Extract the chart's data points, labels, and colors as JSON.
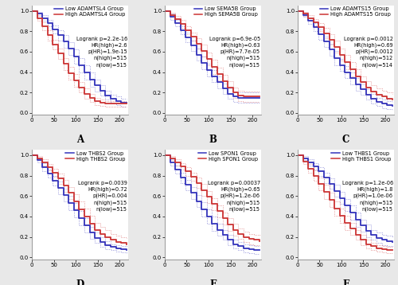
{
  "panels": [
    {
      "label": "A",
      "gene": "ADAMTSL4",
      "low_label": "Low ADAMTSL4 Group",
      "high_label": "High ADAMTSL4 Group",
      "logrank": "p=2.2e-16",
      "HR": "HR(high)=2.6",
      "pHR": "p(HR)=1.9e-15",
      "nhigh": "n(high)=515",
      "nlow": "n(low)=515",
      "low_color": "#3333bb",
      "high_color": "#cc3333",
      "low_surv": [
        1.0,
        0.97,
        0.93,
        0.88,
        0.82,
        0.76,
        0.7,
        0.63,
        0.55,
        0.47,
        0.4,
        0.33,
        0.27,
        0.22,
        0.17,
        0.14,
        0.12,
        0.1,
        0.1
      ],
      "high_surv": [
        1.0,
        0.93,
        0.85,
        0.76,
        0.67,
        0.58,
        0.48,
        0.39,
        0.32,
        0.25,
        0.19,
        0.15,
        0.12,
        0.1,
        0.09,
        0.09,
        0.09,
        0.09,
        0.09
      ],
      "low_upper": [
        1.0,
        0.99,
        0.96,
        0.91,
        0.86,
        0.81,
        0.76,
        0.69,
        0.62,
        0.54,
        0.47,
        0.4,
        0.33,
        0.27,
        0.22,
        0.18,
        0.16,
        0.14,
        0.14
      ],
      "low_lower": [
        1.0,
        0.95,
        0.9,
        0.85,
        0.78,
        0.71,
        0.64,
        0.57,
        0.48,
        0.4,
        0.33,
        0.26,
        0.21,
        0.17,
        0.13,
        0.1,
        0.08,
        0.06,
        0.06
      ],
      "high_upper": [
        1.0,
        0.96,
        0.89,
        0.81,
        0.72,
        0.63,
        0.54,
        0.45,
        0.38,
        0.3,
        0.24,
        0.19,
        0.15,
        0.13,
        0.12,
        0.12,
        0.12,
        0.12,
        0.12
      ],
      "high_lower": [
        1.0,
        0.9,
        0.81,
        0.71,
        0.62,
        0.53,
        0.42,
        0.33,
        0.26,
        0.2,
        0.14,
        0.11,
        0.08,
        0.07,
        0.06,
        0.06,
        0.06,
        0.06,
        0.06
      ],
      "time": [
        0,
        12,
        24,
        36,
        48,
        60,
        72,
        84,
        96,
        108,
        120,
        132,
        144,
        156,
        168,
        180,
        192,
        204,
        216
      ]
    },
    {
      "label": "B",
      "gene": "SEMA5B",
      "low_label": "Low SEMA5B Group",
      "high_label": "High SEMA5B Group",
      "logrank": "p=6.9e-05",
      "HR": "HR(high)=0.63",
      "pHR": "p(HR)=7.7e-05",
      "nhigh": "n(high)=515",
      "nlow": "n(low)=515",
      "low_color": "#3333bb",
      "high_color": "#cc3333",
      "low_surv": [
        1.0,
        0.94,
        0.88,
        0.81,
        0.74,
        0.66,
        0.57,
        0.49,
        0.42,
        0.36,
        0.3,
        0.24,
        0.19,
        0.16,
        0.15,
        0.15,
        0.15,
        0.15,
        0.15
      ],
      "high_surv": [
        1.0,
        0.96,
        0.92,
        0.87,
        0.81,
        0.75,
        0.68,
        0.61,
        0.53,
        0.45,
        0.38,
        0.31,
        0.25,
        0.2,
        0.17,
        0.16,
        0.16,
        0.16,
        0.16
      ],
      "low_upper": [
        1.0,
        0.97,
        0.91,
        0.85,
        0.79,
        0.71,
        0.63,
        0.55,
        0.48,
        0.42,
        0.36,
        0.29,
        0.24,
        0.21,
        0.2,
        0.2,
        0.2,
        0.2,
        0.2
      ],
      "low_lower": [
        1.0,
        0.91,
        0.85,
        0.77,
        0.69,
        0.61,
        0.51,
        0.43,
        0.36,
        0.3,
        0.24,
        0.19,
        0.14,
        0.11,
        0.1,
        0.1,
        0.1,
        0.1,
        0.1
      ],
      "high_upper": [
        1.0,
        0.98,
        0.95,
        0.91,
        0.85,
        0.79,
        0.73,
        0.67,
        0.59,
        0.52,
        0.44,
        0.37,
        0.31,
        0.25,
        0.22,
        0.21,
        0.21,
        0.21,
        0.21
      ],
      "high_lower": [
        1.0,
        0.94,
        0.89,
        0.83,
        0.77,
        0.71,
        0.63,
        0.55,
        0.47,
        0.38,
        0.32,
        0.25,
        0.19,
        0.15,
        0.12,
        0.11,
        0.11,
        0.11,
        0.11
      ],
      "time": [
        0,
        12,
        24,
        36,
        48,
        60,
        72,
        84,
        96,
        108,
        120,
        132,
        144,
        156,
        168,
        180,
        192,
        204,
        216
      ]
    },
    {
      "label": "C",
      "gene": "ADAMTS15",
      "low_label": "Low ADAMTS15 Group",
      "high_label": "High ADAMTS15 Group",
      "logrank": "p=0.0012",
      "HR": "HR(high)=0.69",
      "pHR": "p(HR)=0.0012",
      "nhigh": "n(high)=512",
      "nlow": "n(low)=514",
      "low_color": "#3333bb",
      "high_color": "#cc3333",
      "low_surv": [
        1.0,
        0.96,
        0.9,
        0.84,
        0.77,
        0.7,
        0.62,
        0.54,
        0.47,
        0.4,
        0.34,
        0.28,
        0.23,
        0.18,
        0.14,
        0.11,
        0.09,
        0.08,
        0.07
      ],
      "high_surv": [
        1.0,
        0.97,
        0.93,
        0.89,
        0.84,
        0.78,
        0.72,
        0.65,
        0.57,
        0.5,
        0.43,
        0.36,
        0.3,
        0.25,
        0.21,
        0.18,
        0.16,
        0.14,
        0.13
      ],
      "low_upper": [
        1.0,
        0.98,
        0.93,
        0.88,
        0.82,
        0.75,
        0.68,
        0.61,
        0.53,
        0.46,
        0.4,
        0.34,
        0.28,
        0.23,
        0.19,
        0.15,
        0.13,
        0.12,
        0.11
      ],
      "low_lower": [
        1.0,
        0.94,
        0.87,
        0.8,
        0.72,
        0.65,
        0.56,
        0.47,
        0.41,
        0.34,
        0.28,
        0.22,
        0.18,
        0.13,
        0.09,
        0.07,
        0.05,
        0.04,
        0.03
      ],
      "high_upper": [
        1.0,
        0.99,
        0.96,
        0.92,
        0.88,
        0.83,
        0.77,
        0.71,
        0.63,
        0.57,
        0.5,
        0.43,
        0.36,
        0.31,
        0.27,
        0.24,
        0.22,
        0.2,
        0.19
      ],
      "high_lower": [
        1.0,
        0.95,
        0.9,
        0.86,
        0.8,
        0.73,
        0.67,
        0.59,
        0.51,
        0.43,
        0.36,
        0.29,
        0.24,
        0.19,
        0.15,
        0.12,
        0.1,
        0.08,
        0.07
      ],
      "time": [
        0,
        12,
        24,
        36,
        48,
        60,
        72,
        84,
        96,
        108,
        120,
        132,
        144,
        156,
        168,
        180,
        192,
        204,
        216
      ]
    },
    {
      "label": "D",
      "gene": "THBS2",
      "low_label": "Low THBS2 Group",
      "high_label": "High THBS2 Group",
      "logrank": "p=0.0039",
      "HR": "HR(high)=0.72",
      "pHR": "p(HR)=0.004",
      "nhigh": "n(high)=515",
      "nlow": "n(low)=515",
      "low_color": "#3333bb",
      "high_color": "#cc3333",
      "low_surv": [
        1.0,
        0.95,
        0.88,
        0.82,
        0.75,
        0.68,
        0.61,
        0.53,
        0.46,
        0.38,
        0.31,
        0.24,
        0.19,
        0.15,
        0.12,
        0.1,
        0.09,
        0.08,
        0.07
      ],
      "high_surv": [
        1.0,
        0.97,
        0.93,
        0.88,
        0.83,
        0.77,
        0.7,
        0.63,
        0.55,
        0.47,
        0.4,
        0.33,
        0.27,
        0.23,
        0.2,
        0.17,
        0.15,
        0.14,
        0.13
      ],
      "low_upper": [
        1.0,
        0.97,
        0.92,
        0.86,
        0.8,
        0.74,
        0.67,
        0.6,
        0.53,
        0.45,
        0.38,
        0.3,
        0.24,
        0.2,
        0.16,
        0.13,
        0.12,
        0.11,
        0.1
      ],
      "low_lower": [
        1.0,
        0.93,
        0.84,
        0.78,
        0.7,
        0.62,
        0.55,
        0.46,
        0.39,
        0.31,
        0.24,
        0.18,
        0.14,
        0.1,
        0.08,
        0.07,
        0.06,
        0.05,
        0.04
      ],
      "high_upper": [
        1.0,
        0.99,
        0.96,
        0.91,
        0.87,
        0.82,
        0.76,
        0.69,
        0.62,
        0.55,
        0.48,
        0.41,
        0.34,
        0.3,
        0.27,
        0.23,
        0.21,
        0.2,
        0.19
      ],
      "high_lower": [
        1.0,
        0.95,
        0.9,
        0.85,
        0.79,
        0.72,
        0.64,
        0.57,
        0.48,
        0.39,
        0.32,
        0.25,
        0.2,
        0.16,
        0.13,
        0.11,
        0.09,
        0.08,
        0.07
      ],
      "time": [
        0,
        12,
        24,
        36,
        48,
        60,
        72,
        84,
        96,
        108,
        120,
        132,
        144,
        156,
        168,
        180,
        192,
        204,
        216
      ]
    },
    {
      "label": "E",
      "gene": "SPON1",
      "low_label": "Low SPON1 Group",
      "high_label": "High SPON1 Group",
      "logrank": "p=0.00037",
      "HR": "HR(high)=0.65",
      "pHR": "p(HR)=1.2e-06",
      "nhigh": "n(high)=515",
      "nlow": "n(low)=515",
      "low_color": "#3333bb",
      "high_color": "#cc3333",
      "low_surv": [
        1.0,
        0.93,
        0.86,
        0.78,
        0.71,
        0.63,
        0.55,
        0.47,
        0.4,
        0.33,
        0.27,
        0.22,
        0.17,
        0.13,
        0.11,
        0.09,
        0.08,
        0.07,
        0.07
      ],
      "high_surv": [
        1.0,
        0.97,
        0.93,
        0.89,
        0.84,
        0.79,
        0.73,
        0.66,
        0.59,
        0.52,
        0.45,
        0.38,
        0.32,
        0.27,
        0.23,
        0.2,
        0.18,
        0.17,
        0.16
      ],
      "low_upper": [
        1.0,
        0.96,
        0.9,
        0.83,
        0.76,
        0.69,
        0.61,
        0.54,
        0.47,
        0.4,
        0.33,
        0.27,
        0.22,
        0.17,
        0.15,
        0.13,
        0.12,
        0.11,
        0.11
      ],
      "low_lower": [
        1.0,
        0.9,
        0.82,
        0.73,
        0.66,
        0.57,
        0.49,
        0.4,
        0.33,
        0.26,
        0.21,
        0.17,
        0.12,
        0.09,
        0.07,
        0.05,
        0.04,
        0.03,
        0.03
      ],
      "high_upper": [
        1.0,
        0.99,
        0.96,
        0.92,
        0.88,
        0.83,
        0.78,
        0.72,
        0.65,
        0.58,
        0.51,
        0.44,
        0.38,
        0.33,
        0.28,
        0.25,
        0.23,
        0.22,
        0.21
      ],
      "high_lower": [
        1.0,
        0.95,
        0.9,
        0.86,
        0.8,
        0.75,
        0.68,
        0.6,
        0.53,
        0.46,
        0.39,
        0.32,
        0.26,
        0.21,
        0.18,
        0.15,
        0.13,
        0.12,
        0.11
      ],
      "time": [
        0,
        12,
        24,
        36,
        48,
        60,
        72,
        84,
        96,
        108,
        120,
        132,
        144,
        156,
        168,
        180,
        192,
        204,
        216
      ]
    },
    {
      "label": "F",
      "gene": "THBS1",
      "low_label": "Low THBS1 Group",
      "high_label": "High THBS1 Group",
      "logrank": "p=1.2e-06",
      "HR": "HR(high)=1.8",
      "pHR": "p(HR)=1.0e-06",
      "nhigh": "n(high)=515",
      "nlow": "n(low)=515",
      "low_color": "#3333bb",
      "high_color": "#cc3333",
      "low_surv": [
        1.0,
        0.97,
        0.93,
        0.89,
        0.84,
        0.78,
        0.72,
        0.65,
        0.58,
        0.51,
        0.44,
        0.37,
        0.31,
        0.26,
        0.22,
        0.19,
        0.17,
        0.16,
        0.15
      ],
      "high_surv": [
        1.0,
        0.94,
        0.87,
        0.8,
        0.72,
        0.64,
        0.56,
        0.48,
        0.41,
        0.34,
        0.28,
        0.22,
        0.17,
        0.13,
        0.11,
        0.09,
        0.08,
        0.07,
        0.07
      ],
      "low_upper": [
        1.0,
        0.99,
        0.96,
        0.92,
        0.88,
        0.83,
        0.77,
        0.71,
        0.64,
        0.57,
        0.51,
        0.44,
        0.37,
        0.32,
        0.27,
        0.24,
        0.22,
        0.21,
        0.2
      ],
      "low_lower": [
        1.0,
        0.95,
        0.9,
        0.86,
        0.8,
        0.73,
        0.67,
        0.59,
        0.52,
        0.45,
        0.37,
        0.3,
        0.25,
        0.2,
        0.17,
        0.14,
        0.12,
        0.11,
        0.1
      ],
      "high_upper": [
        1.0,
        0.97,
        0.91,
        0.85,
        0.78,
        0.71,
        0.63,
        0.55,
        0.48,
        0.41,
        0.34,
        0.27,
        0.22,
        0.17,
        0.14,
        0.12,
        0.11,
        0.1,
        0.1
      ],
      "high_lower": [
        1.0,
        0.91,
        0.83,
        0.75,
        0.66,
        0.57,
        0.49,
        0.41,
        0.34,
        0.27,
        0.22,
        0.17,
        0.12,
        0.09,
        0.07,
        0.06,
        0.05,
        0.04,
        0.04
      ],
      "time": [
        0,
        12,
        24,
        36,
        48,
        60,
        72,
        84,
        96,
        108,
        120,
        132,
        144,
        156,
        168,
        180,
        192,
        204,
        216
      ]
    }
  ],
  "outer_bg": "#e8e8e8",
  "panel_bg": "#ffffff",
  "xticks": [
    0,
    50,
    100,
    150,
    200
  ],
  "yticks": [
    0.0,
    0.2,
    0.4,
    0.6,
    0.8,
    1.0
  ],
  "xlim": [
    0,
    220
  ],
  "ylim": [
    -0.02,
    1.05
  ],
  "legend_fontsize": 4.8,
  "annot_fontsize": 4.8,
  "label_fontsize": 8.5,
  "tick_fontsize": 5.0,
  "lw_main": 1.3,
  "lw_ci": 0.55
}
